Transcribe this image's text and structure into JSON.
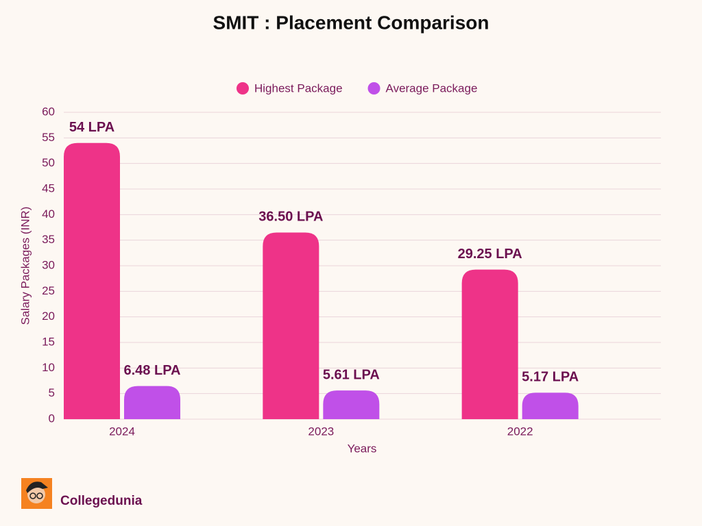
{
  "chart_data": {
    "type": "bar",
    "title": "SMIT : Placement Comparison",
    "categories": [
      "2024",
      "2023",
      "2022"
    ],
    "series": [
      {
        "name": "Highest Package",
        "color": "#ee3388",
        "values": [
          54,
          36.5,
          29.25
        ],
        "value_labels": [
          "54 LPA",
          "36.50 LPA",
          "29.25 LPA"
        ]
      },
      {
        "name": "Average Package",
        "color": "#c050e8",
        "values": [
          6.48,
          5.61,
          5.17
        ],
        "value_labels": [
          "6.48 LPA",
          "5.61 LPA",
          "5.17 LPA"
        ]
      }
    ],
    "xlabel": "Years",
    "ylabel": "Salary Packages (INR)",
    "ylim": [
      0,
      60
    ],
    "yticks": [
      0,
      5,
      10,
      15,
      20,
      25,
      30,
      35,
      40,
      45,
      50,
      55,
      60
    ],
    "grid": true,
    "legend": "top"
  },
  "brand": "Collegedunia"
}
